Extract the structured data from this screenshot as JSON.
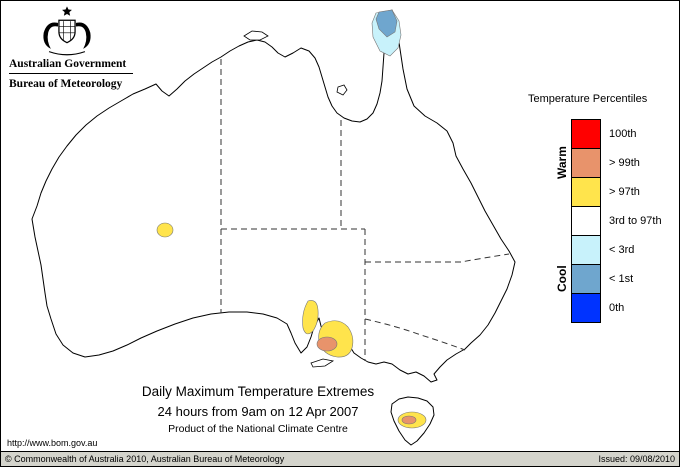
{
  "header": {
    "gov_title": "Australian Government",
    "bom_title": "Bureau of Meteorology"
  },
  "legend": {
    "title": "Temperature Percentiles",
    "warm_label": "Warm",
    "cool_label": "Cool",
    "entries": [
      {
        "label": "100th",
        "color": "#FF0000"
      },
      {
        "label": "> 99th",
        "color": "#E8936B"
      },
      {
        "label": "> 97th",
        "color": "#FFE44C"
      },
      {
        "label": "3rd to 97th",
        "color": "#FFFFFF"
      },
      {
        "label": "< 3rd",
        "color": "#C8F2FB"
      },
      {
        "label": "< 1st",
        "color": "#6FA6CE"
      },
      {
        "label": "0th",
        "color": "#0033FF"
      }
    ]
  },
  "map": {
    "title_line1": "Daily Maximum Temperature Extremes",
    "title_line2": "24 hours from 9am on 12 Apr 2007",
    "title_line3": "Product of the National Climate Centre",
    "regions": [
      {
        "id": "cape-york-below-3rd",
        "category": "< 3rd",
        "color": "#C8F2FB"
      },
      {
        "id": "cape-york-below-1st",
        "category": "< 1st",
        "color": "#6FA6CE"
      },
      {
        "id": "wa-interior-above-97th",
        "category": "> 97th",
        "color": "#FFE44C"
      },
      {
        "id": "sa-eyre-above-97th",
        "category": "> 97th",
        "color": "#FFE44C"
      },
      {
        "id": "sa-gulfs-above-97th",
        "category": "> 97th",
        "color": "#FFE44C"
      },
      {
        "id": "sa-gulfs-above-99th",
        "category": "> 99th",
        "color": "#E8936B"
      },
      {
        "id": "tasmania-above-97th",
        "category": "> 97th",
        "color": "#FFE44C"
      },
      {
        "id": "tasmania-above-99th",
        "category": "> 99th",
        "color": "#E8936B"
      }
    ]
  },
  "footer": {
    "url": "http://www.bom.gov.au",
    "copyright": "© Commonwealth of Australia 2010, Australian Bureau of Meteorology",
    "issued": "Issued: 09/08/2010"
  }
}
